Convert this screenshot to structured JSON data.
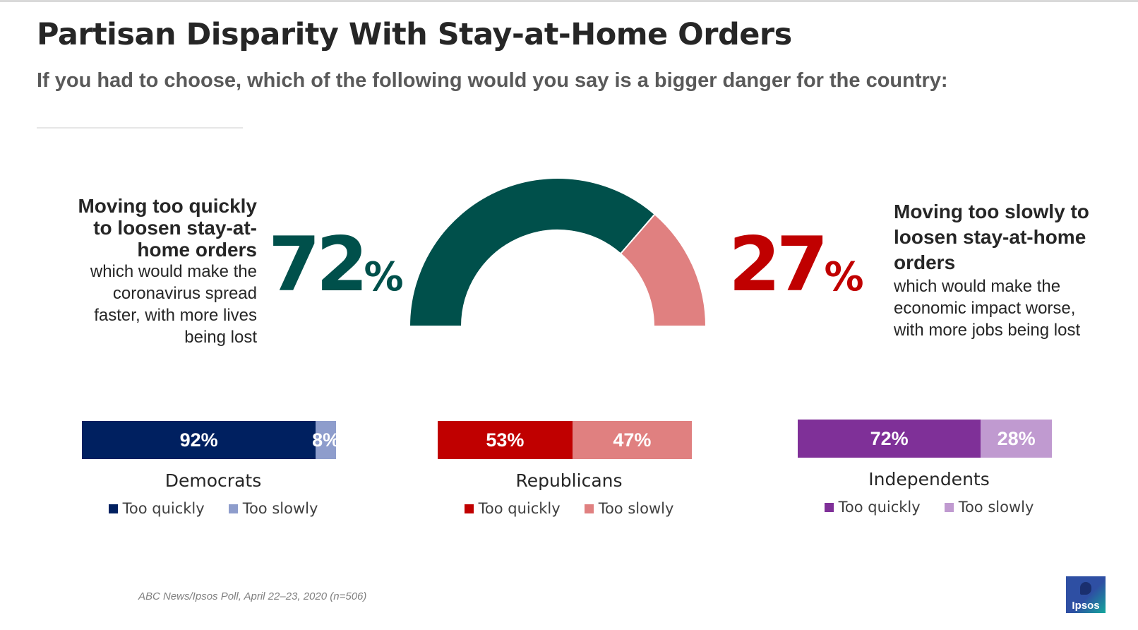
{
  "title": "Partisan Disparity With Stay-at-Home Orders",
  "subtitle": "If you had to choose, which of the following would you say is a bigger danger for the country:",
  "options": {
    "quick": {
      "heading_lines": [
        "Moving too quickly",
        "to loosen stay-at-",
        "home orders"
      ],
      "desc_lines": [
        "which would make the",
        "coronavirus spread",
        "faster, with more lives",
        "being lost"
      ],
      "value": "72",
      "pct_symbol": "%",
      "color": "#00504b"
    },
    "slow": {
      "heading_lines": [
        "Moving too slowly to",
        "loosen stay-at-home",
        "orders"
      ],
      "desc_lines": [
        "which would make the",
        "economic impact worse,",
        "with more jobs being lost"
      ],
      "value": "27",
      "pct_symbol": "%",
      "color": "#c00000",
      "gauge_color": "#e08080"
    }
  },
  "chart_data": [
    {
      "type": "pie",
      "variant": "half-donut",
      "labels": [
        "Moving too quickly to loosen stay-at-home orders",
        "Moving too slowly to loosen stay-at-home orders"
      ],
      "values": [
        72,
        27
      ],
      "colors": [
        "#00504b",
        "#e08080"
      ]
    },
    {
      "type": "bar",
      "variant": "stacked-horizontal",
      "groups": [
        {
          "name": "Democrats",
          "series": [
            {
              "name": "Too quickly",
              "value": 92,
              "label": "92%",
              "color": "#002060"
            },
            {
              "name": "Too slowly",
              "value": 8,
              "label": "8%",
              "color": "#8e9dcc"
            }
          ]
        },
        {
          "name": "Republicans",
          "series": [
            {
              "name": "Too quickly",
              "value": 53,
              "label": "53%",
              "color": "#c00000"
            },
            {
              "name": "Too slowly",
              "value": 47,
              "label": "47%",
              "color": "#e08080"
            }
          ]
        },
        {
          "name": "Independents",
          "series": [
            {
              "name": "Too quickly",
              "value": 72,
              "label": "72%",
              "color": "#7f3098"
            },
            {
              "name": "Too slowly",
              "value": 28,
              "label": "28%",
              "color": "#c09ad0"
            }
          ]
        }
      ]
    }
  ],
  "source": "ABC News/Ipsos Poll, April 22–23, 2020 (n=506)",
  "logo": {
    "text": "Ipsos"
  }
}
